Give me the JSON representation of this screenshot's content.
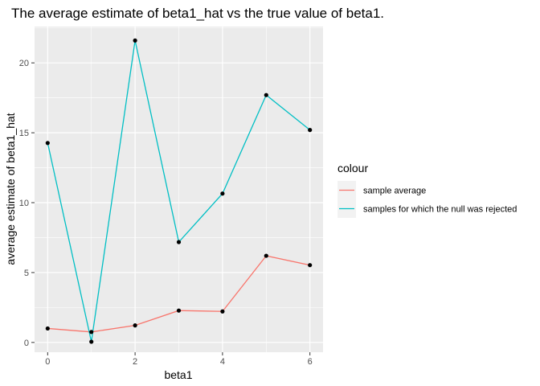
{
  "chart_data": {
    "type": "line",
    "title": "The average estimate of beta1_hat vs the true value of beta1.",
    "xlabel": "beta1",
    "ylabel": "average estimate of beta1_hat",
    "x": [
      0,
      1,
      2,
      3,
      4,
      5,
      6
    ],
    "xlim": [
      -0.3,
      6.3
    ],
    "ylim": [
      -0.7,
      22.6
    ],
    "xticks": [
      0,
      2,
      4,
      6
    ],
    "yticks": [
      0,
      5,
      10,
      15,
      20
    ],
    "grid": true,
    "legend_title": "colour",
    "legend_position": "right",
    "series": [
      {
        "name": "sample average",
        "color": "#f8766d",
        "values": [
          1.0,
          0.75,
          1.22,
          2.28,
          2.22,
          6.2,
          5.53
        ]
      },
      {
        "name": "samples for which the null was rejected",
        "color": "#00bfc4",
        "values": [
          14.27,
          0.05,
          21.6,
          7.18,
          10.65,
          17.7,
          15.2
        ]
      }
    ],
    "colors": {
      "panel": "#ebebeb",
      "grid_major": "#ffffff",
      "points": "#000000"
    }
  }
}
